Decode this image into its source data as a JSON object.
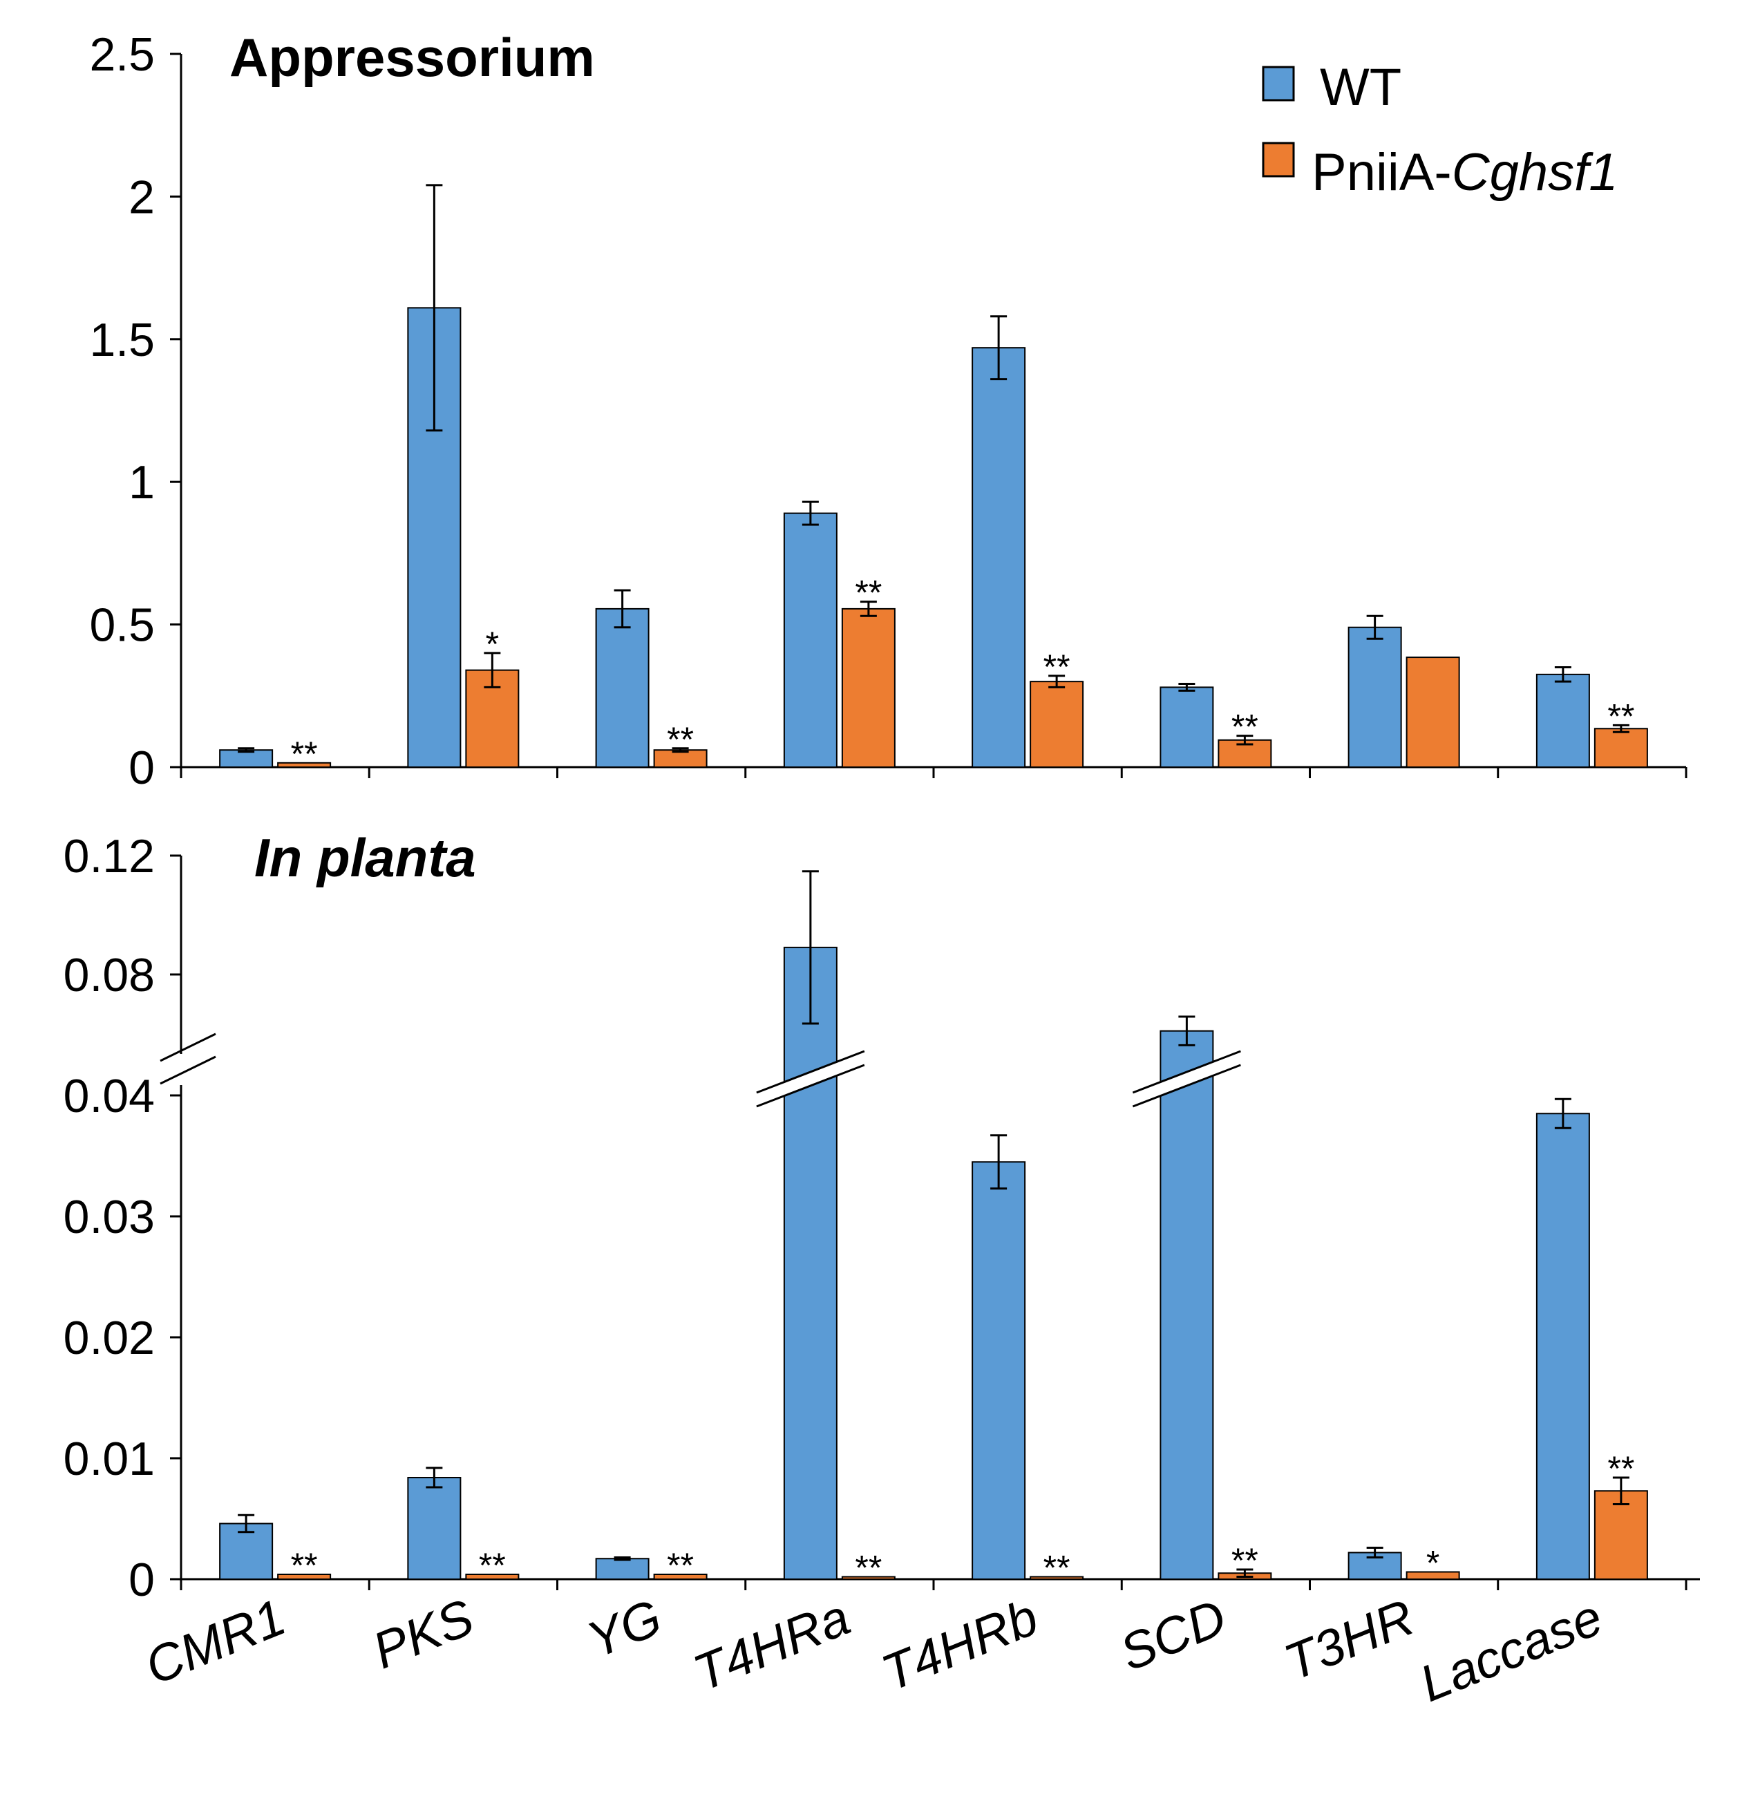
{
  "chart_data": [
    {
      "type": "bar",
      "title": "Appressorium",
      "categories": [
        "CMR1",
        "PKS",
        "YG",
        "T4HRa",
        "T4HRb",
        "SCD",
        "T3HR",
        "Laccase"
      ],
      "yticks": [
        "0",
        "0.5",
        "1",
        "1.5",
        "2",
        "2.5"
      ],
      "ylim": [
        0,
        2.5
      ],
      "series": [
        {
          "name": "WT",
          "color": "#5b9bd5",
          "values": [
            0.06,
            1.61,
            0.555,
            0.89,
            1.47,
            0.28,
            0.49,
            0.325
          ],
          "errors": [
            0.006,
            0.43,
            0.065,
            0.04,
            0.11,
            0.012,
            0.04,
            0.025
          ]
        },
        {
          "name": "PniiA-Cghsf1",
          "color": "#ed7d31",
          "values": [
            0.015,
            0.34,
            0.06,
            0.555,
            0.3,
            0.095,
            0.385,
            0.135
          ],
          "errors": [
            0.0,
            0.06,
            0.006,
            0.025,
            0.02,
            0.015,
            0.0,
            0.012
          ]
        }
      ],
      "annotations": [
        "**",
        "*",
        "**",
        "**",
        "**",
        "**",
        "",
        "**"
      ]
    },
    {
      "type": "bar",
      "title": "In planta",
      "categories": [
        "CMR1",
        "PKS",
        "YG",
        "T4HRa",
        "T4HRb",
        "SCD",
        "T3HR",
        "Laccase"
      ],
      "yticks": [
        "0",
        "0.01",
        "0.02",
        "0.03",
        "0.04",
        "0.08",
        "0.12"
      ],
      "ylim": [
        0,
        0.12
      ],
      "axis_break": [
        0.04,
        0.06
      ],
      "series": [
        {
          "name": "WT",
          "color": "#5b9bd5",
          "values": [
            0.0046,
            0.0084,
            0.0017,
            0.0891,
            0.0345,
            0.061,
            0.0022,
            0.0385
          ],
          "errors": [
            0.0007,
            0.0008,
            0.0001,
            0.0256,
            0.0022,
            0.0048,
            0.0004,
            0.0012
          ]
        },
        {
          "name": "PniiA-Cghsf1",
          "color": "#ed7d31",
          "values": [
            0.0004,
            0.0004,
            0.0004,
            0.0002,
            0.0002,
            0.0005,
            0.0006,
            0.0073
          ],
          "errors": [
            0.0,
            0.0,
            0.0,
            0.0,
            0.0,
            0.0003,
            0.0,
            0.0011
          ]
        }
      ],
      "annotations": [
        "**",
        "**",
        "**",
        "**",
        "**",
        "**",
        "*",
        "**"
      ]
    }
  ],
  "legend": {
    "wt_label": "WT",
    "mut_prefix": "PniiA-",
    "mut_italic": "Cghsf1"
  }
}
